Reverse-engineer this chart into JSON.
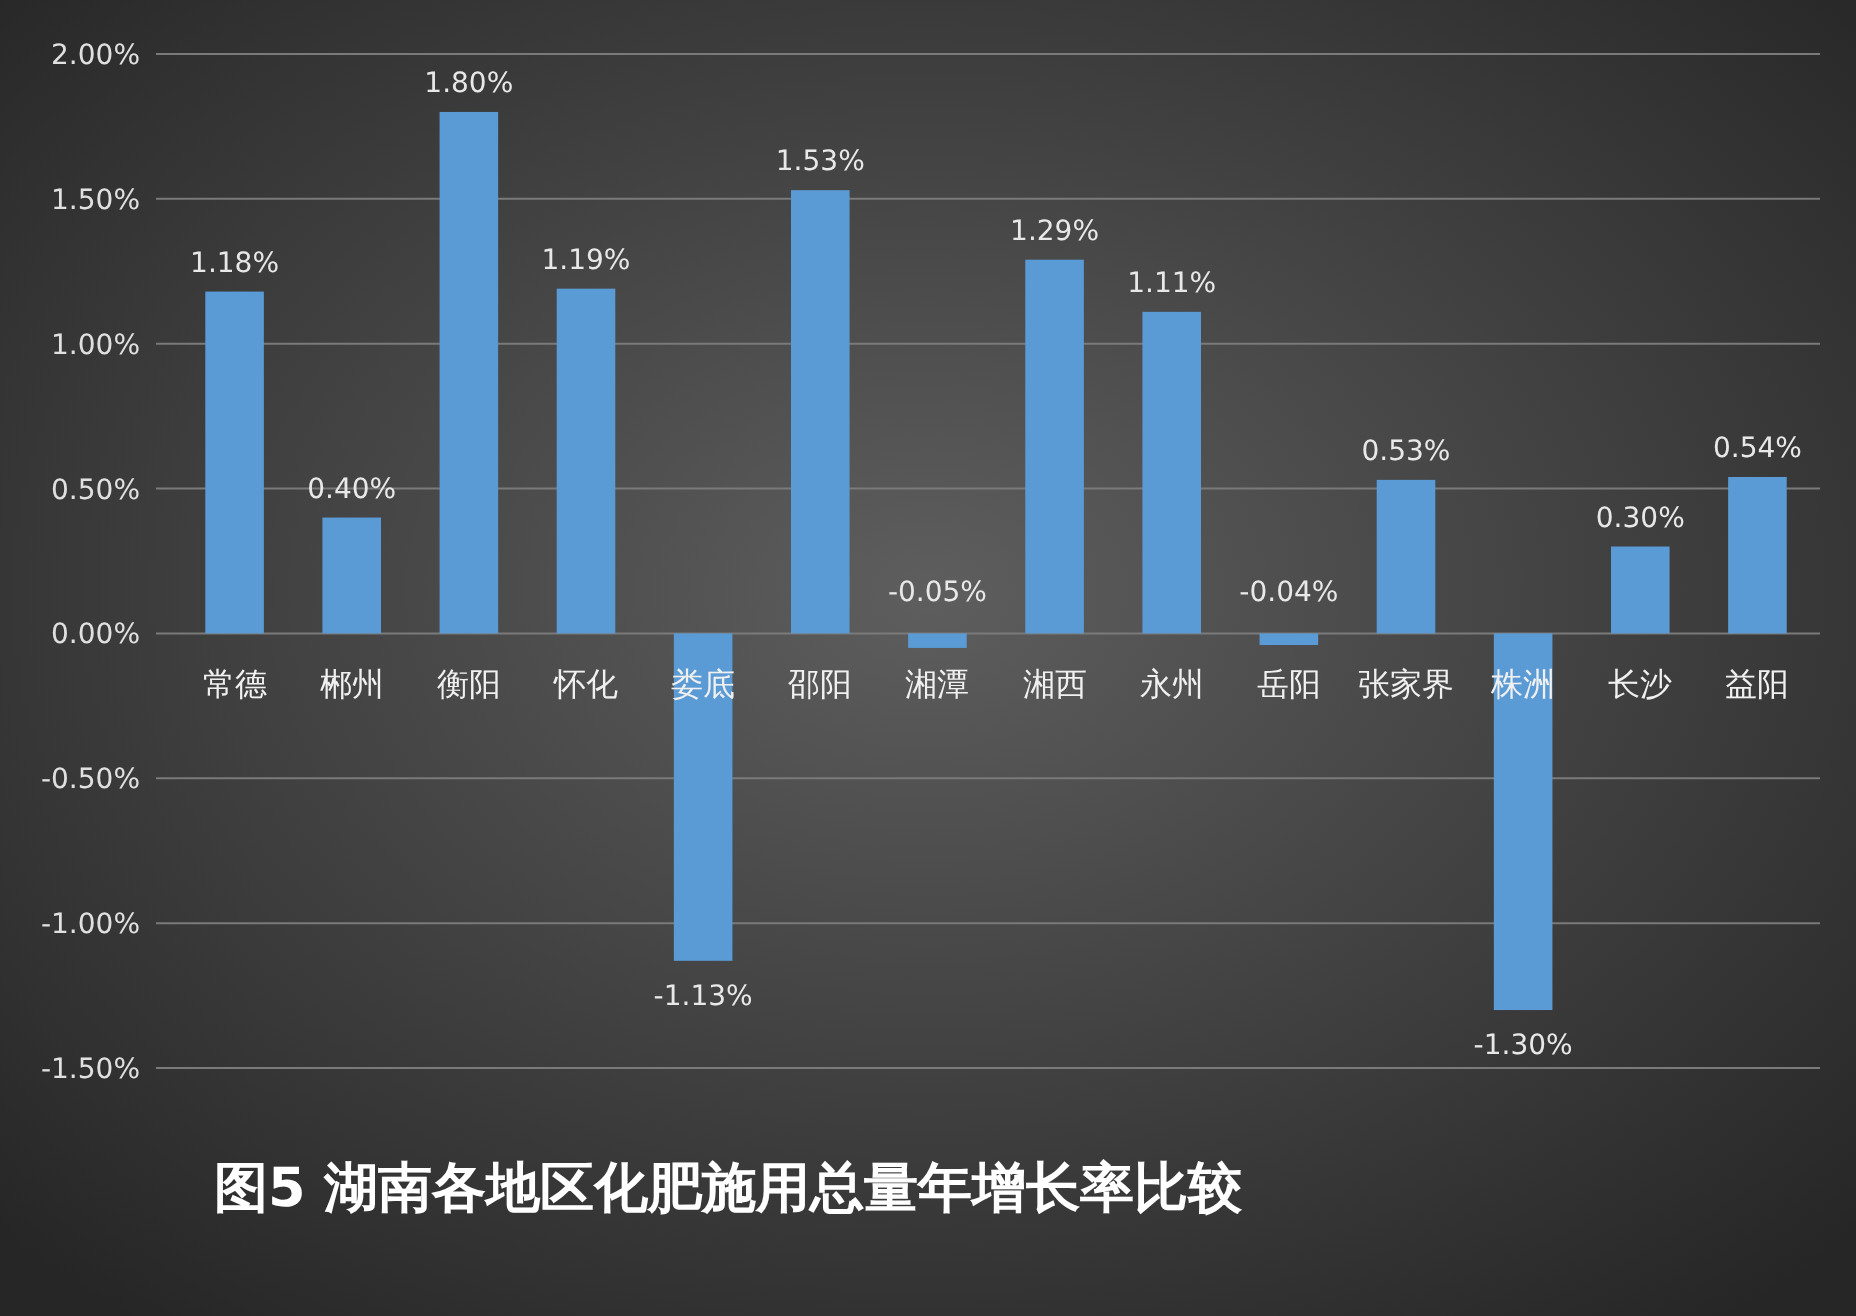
{
  "chart_data": {
    "type": "bar",
    "title": "图5 湖南各地区化肥施用总量年增长率比较",
    "categories": [
      "常德",
      "郴州",
      "衡阳",
      "怀化",
      "娄底",
      "邵阳",
      "湘潭",
      "湘西",
      "永州",
      "岳阳",
      "张家界",
      "株洲",
      "长沙",
      "益阳"
    ],
    "values": [
      1.18,
      0.4,
      1.8,
      1.19,
      -1.13,
      1.53,
      -0.05,
      1.29,
      1.11,
      -0.04,
      0.53,
      -1.3,
      0.3,
      0.54
    ],
    "value_labels": [
      "1.18%",
      "0.40%",
      "1.80%",
      "1.19%",
      "-1.13%",
      "1.53%",
      "-0.05%",
      "1.29%",
      "1.11%",
      "-0.04%",
      "0.53%",
      "-1.30%",
      "0.30%",
      "0.54%"
    ],
    "color": "#5b9bd5",
    "ylim": [
      -1.5,
      2
    ],
    "yticks": [
      {
        "value": -1.5,
        "label": "-1.50%"
      },
      {
        "value": -1,
        "label": "-1.00%"
      },
      {
        "value": -0.5,
        "label": "-0.50%"
      },
      {
        "value": 0,
        "label": "0.00%"
      },
      {
        "value": 0.5,
        "label": "0.50%"
      },
      {
        "value": 1,
        "label": "1.00%"
      },
      {
        "value": 1.5,
        "label": "1.50%"
      },
      {
        "value": 2,
        "label": "2.00%"
      }
    ],
    "grid": "y"
  }
}
